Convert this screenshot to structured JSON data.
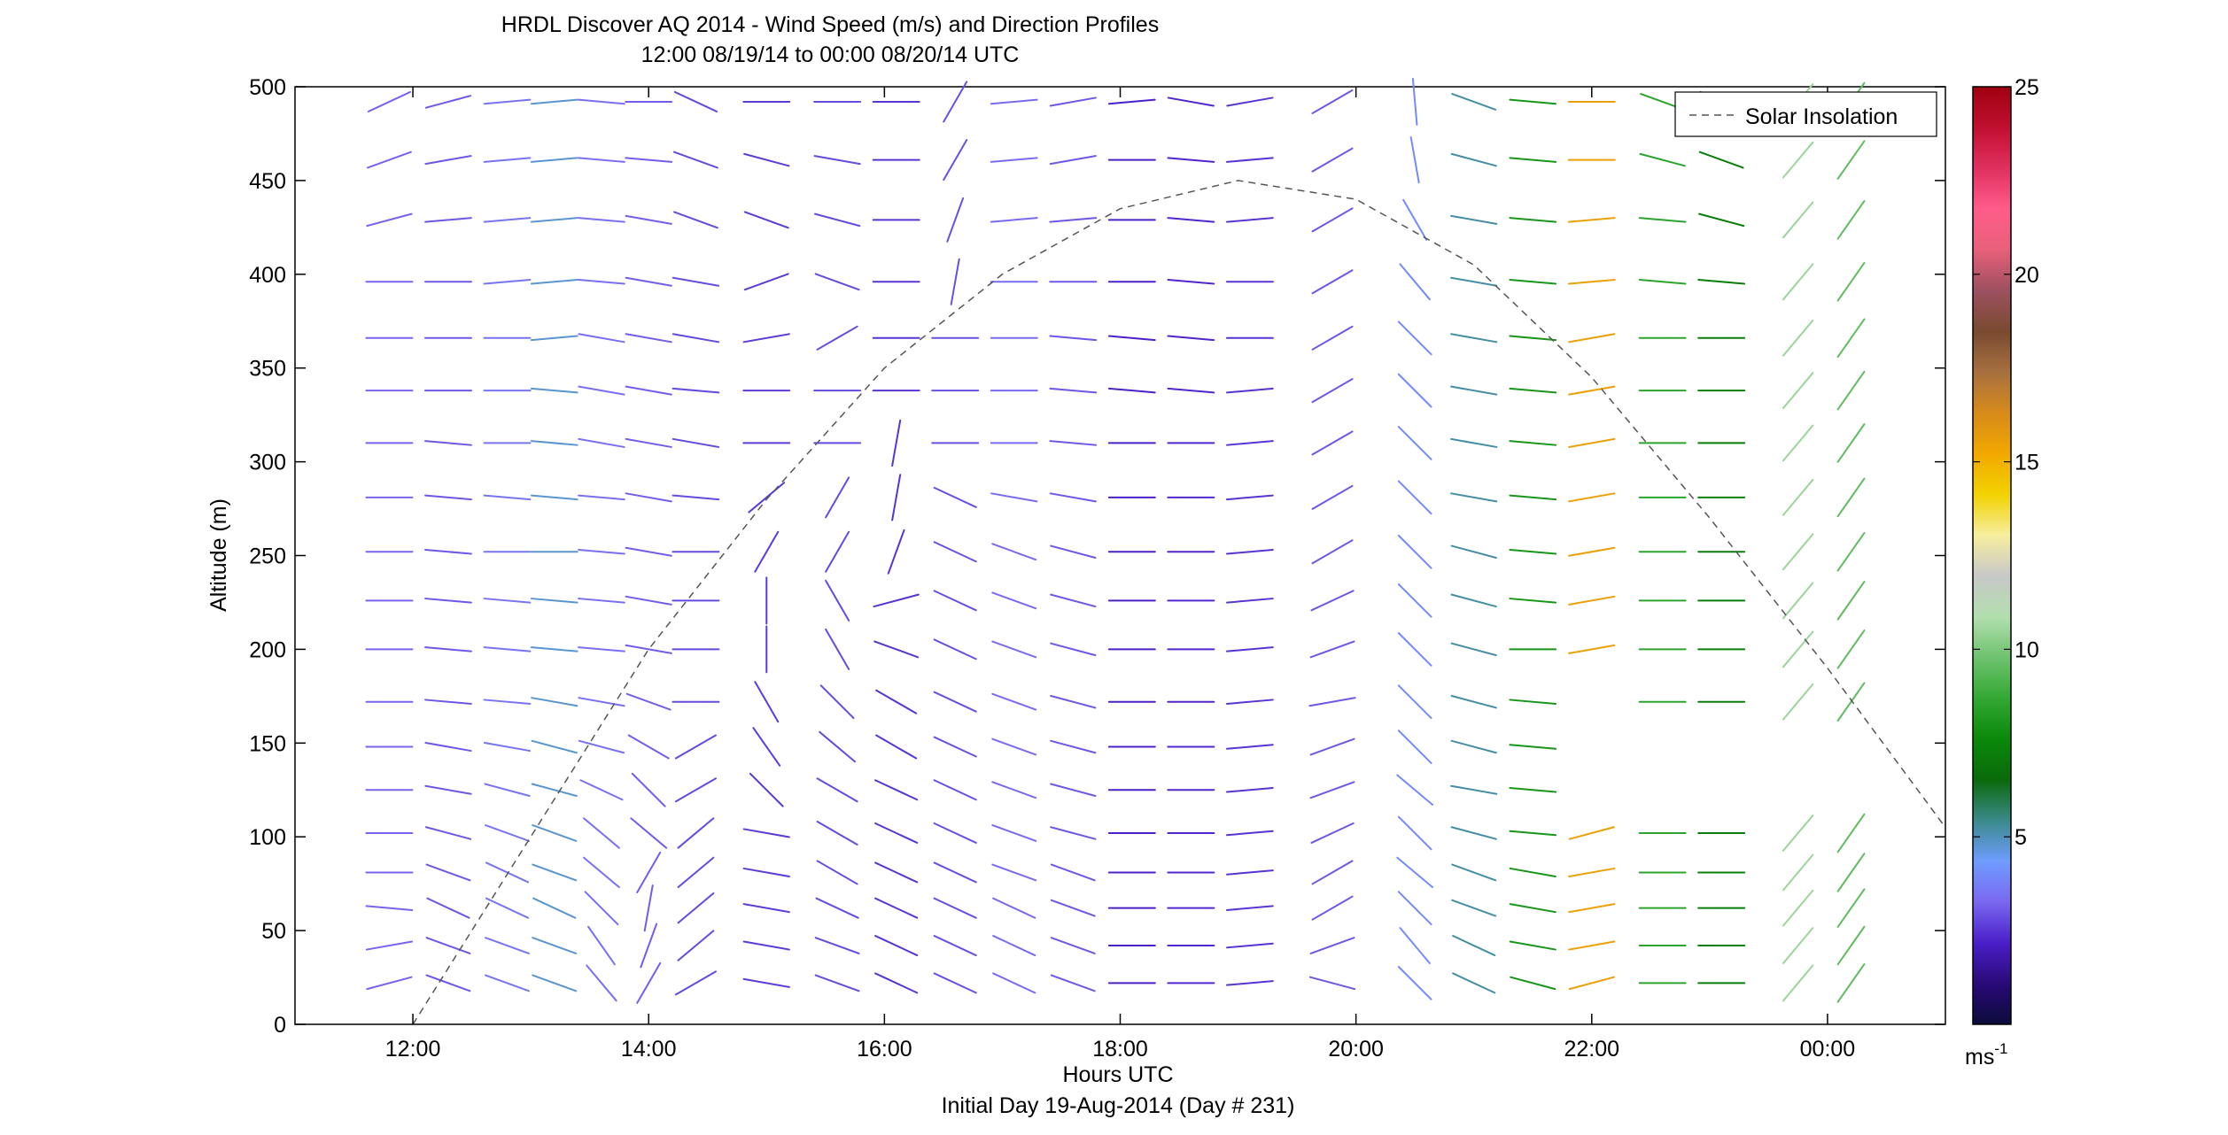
{
  "chart_data": {
    "type": "wind_barb_profile",
    "title": [
      "HRDL Discover AQ 2014 - Wind Speed (m/s) and Direction Profiles",
      "12:00 08/19/14 to 00:00 08/20/14  UTC"
    ],
    "xlabel": "Hours UTC",
    "xlabel2": "Initial Day 19-Aug-2014 (Day # 231)",
    "ylabel": "Altitude (m)",
    "x_ticks": [
      "12:00",
      "14:00",
      "16:00",
      "18:00",
      "20:00",
      "22:00",
      "00:00"
    ],
    "x_tick_hours": [
      12,
      14,
      16,
      18,
      20,
      22,
      24
    ],
    "xlim": [
      11.0,
      25.0
    ],
    "y_ticks": [
      0,
      50,
      100,
      150,
      200,
      250,
      300,
      350,
      400,
      450,
      500
    ],
    "ylim": [
      0,
      500
    ],
    "colorbar": {
      "ticks": [
        5,
        10,
        15,
        20,
        25
      ],
      "range": [
        0,
        25
      ],
      "unit_label": "ms",
      "unit_superscript": "-1",
      "stops": [
        "#0b0b3a",
        "#2a0a78",
        "#4a1ec8",
        "#7a68f0",
        "#6f9cff",
        "#3a8a8a",
        "#0a6a0a",
        "#0a8a0a",
        "#33a833",
        "#6fc26f",
        "#b2dfae",
        "#c8c8c8",
        "#f6ee9e",
        "#f2d200",
        "#f2a800",
        "#d68a1a",
        "#a87040",
        "#7a4a30",
        "#9c5060",
        "#e8607a",
        "#ff5c8a",
        "#e03060",
        "#c01030",
        "#a00010"
      ]
    },
    "legend": {
      "label": "Solar Insolation",
      "position": "top-right",
      "line_style": "dashed",
      "color": "#555555"
    },
    "solar_insolation_curve": {
      "hours": [
        12.0,
        13.0,
        14.0,
        15.0,
        16.0,
        17.0,
        18.0,
        19.0,
        20.0,
        21.0,
        22.0,
        23.0,
        24.0,
        25.0
      ],
      "altitude": [
        0,
        100,
        200,
        280,
        350,
        400,
        435,
        450,
        440,
        405,
        345,
        270,
        190,
        105
      ]
    },
    "barb_altitudes": [
      22,
      42,
      62,
      81,
      102,
      125,
      148,
      172,
      200,
      226,
      252,
      281,
      310,
      338,
      366,
      396,
      429,
      461,
      492
    ],
    "profiles": [
      {
        "hour": 11.8,
        "speed": 3.2,
        "dir": [
          15,
          10,
          -5,
          0,
          0,
          0,
          0,
          0,
          0,
          0,
          0,
          0,
          0,
          0,
          0,
          0,
          15,
          20,
          25
        ]
      },
      {
        "hour": 12.3,
        "speed": 3.0,
        "dir": [
          -20,
          -20,
          -25,
          -20,
          -15,
          -10,
          -10,
          -5,
          -5,
          -5,
          -5,
          -5,
          -5,
          0,
          0,
          0,
          5,
          10,
          15
        ]
      },
      {
        "hour": 12.8,
        "speed": 3.5,
        "dir": [
          -20,
          -20,
          -25,
          -25,
          -20,
          -15,
          -10,
          -5,
          -5,
          -5,
          0,
          -5,
          0,
          0,
          0,
          5,
          5,
          5,
          5
        ]
      },
      {
        "hour": 13.2,
        "speed": 4.8,
        "dir": [
          -20,
          -20,
          -25,
          -20,
          -20,
          -15,
          -15,
          -10,
          -5,
          -5,
          0,
          -5,
          -5,
          -5,
          5,
          5,
          5,
          5,
          5
        ]
      },
      {
        "hour": 13.6,
        "speed": 3.4,
        "dir": [
          -50,
          -55,
          -45,
          -40,
          -40,
          -25,
          -15,
          -10,
          -5,
          -5,
          -5,
          -5,
          -10,
          -10,
          -10,
          -5,
          -5,
          -5,
          -5
        ]
      },
      {
        "hour": 14.0,
        "speed": 3.1,
        "dir": [
          60,
          70,
          80,
          60,
          -40,
          -45,
          -30,
          -20,
          -10,
          -10,
          -10,
          -10,
          -10,
          -10,
          -10,
          -10,
          -10,
          -5,
          0
        ]
      },
      {
        "hour": 14.4,
        "speed": 2.8,
        "dir": [
          30,
          40,
          40,
          40,
          40,
          30,
          30,
          0,
          0,
          0,
          0,
          -5,
          -10,
          -5,
          -10,
          -10,
          -20,
          -20,
          -25
        ]
      },
      {
        "hour": 15.0,
        "speed": 2.6,
        "dir": [
          -10,
          -10,
          -10,
          -10,
          -10,
          -45,
          -55,
          -60,
          -90,
          90,
          60,
          40,
          0,
          0,
          10,
          20,
          -20,
          -15,
          0
        ]
      },
      {
        "hour": 15.6,
        "speed": 2.8,
        "dir": [
          -20,
          -20,
          -25,
          -30,
          -30,
          -30,
          -40,
          -45,
          -60,
          -60,
          60,
          60,
          0,
          0,
          30,
          -20,
          -15,
          -10,
          0
        ]
      },
      {
        "hour": 16.1,
        "speed": 2.5,
        "dir": [
          -25,
          -25,
          -25,
          -25,
          -25,
          -25,
          -30,
          -30,
          -20,
          15,
          70,
          80,
          80,
          0,
          0,
          0,
          0,
          0,
          0
        ]
      },
      {
        "hour": 16.6,
        "speed": 2.9,
        "dir": [
          -25,
          -25,
          -25,
          -25,
          -25,
          -25,
          -25,
          -25,
          -25,
          -25,
          -25,
          -25,
          0,
          0,
          0,
          80,
          70,
          60,
          60
        ]
      },
      {
        "hour": 17.1,
        "speed": 3.3,
        "dir": [
          -25,
          -25,
          -25,
          -20,
          -20,
          -20,
          -20,
          -20,
          -20,
          -20,
          -20,
          -10,
          0,
          0,
          0,
          0,
          5,
          5,
          5
        ]
      },
      {
        "hour": 17.6,
        "speed": 3.0,
        "dir": [
          -20,
          -20,
          -20,
          -20,
          -15,
          -15,
          -15,
          -15,
          -15,
          -15,
          -15,
          -10,
          -5,
          -5,
          -5,
          0,
          5,
          10,
          10
        ]
      },
      {
        "hour": 18.1,
        "speed": 2.2,
        "dir": [
          0,
          0,
          0,
          0,
          0,
          0,
          0,
          0,
          0,
          0,
          0,
          0,
          0,
          -5,
          -5,
          0,
          0,
          0,
          5
        ]
      },
      {
        "hour": 18.6,
        "speed": 2.3,
        "dir": [
          0,
          0,
          0,
          0,
          0,
          0,
          0,
          0,
          0,
          0,
          0,
          0,
          0,
          -5,
          -5,
          -5,
          -5,
          -5,
          -10
        ]
      },
      {
        "hour": 19.1,
        "speed": 2.5,
        "dir": [
          5,
          5,
          5,
          5,
          5,
          5,
          5,
          5,
          5,
          5,
          5,
          5,
          5,
          5,
          0,
          0,
          5,
          5,
          10
        ]
      },
      {
        "hour": 19.8,
        "speed": 3.0,
        "dir": [
          -15,
          20,
          30,
          30,
          25,
          20,
          20,
          10,
          20,
          25,
          30,
          30,
          30,
          30,
          30,
          30,
          30,
          30,
          30
        ]
      },
      {
        "hour": 20.5,
        "speed": 4.0,
        "dir": [
          -45,
          -50,
          -45,
          -40,
          -45,
          -40,
          -45,
          -45,
          -45,
          -45,
          -45,
          -45,
          -45,
          -45,
          -45,
          -50,
          -60,
          -80,
          -85
        ]
      },
      {
        "hour": 21.0,
        "speed": 5.2,
        "dir": [
          -25,
          -25,
          -20,
          -20,
          -15,
          -10,
          -15,
          -15,
          -15,
          -15,
          -15,
          -10,
          -10,
          -10,
          -10,
          -10,
          -10,
          -15,
          -20
        ]
      },
      {
        "hour": 21.5,
        "speed": 8.0,
        "dir": [
          -15,
          -10,
          -10,
          -10,
          -5,
          -5,
          -5,
          -5,
          0,
          -5,
          -5,
          -5,
          -5,
          -5,
          -5,
          -5,
          -5,
          -5,
          -5
        ]
      },
      {
        "hour": 22.0,
        "speed": 15.5,
        "dir": [
          15,
          10,
          10,
          10,
          15,
          999,
          999,
          999,
          10,
          10,
          10,
          10,
          10,
          10,
          10,
          5,
          5,
          0,
          0
        ]
      },
      {
        "hour": 22.6,
        "speed": 8.5,
        "dir": [
          0,
          0,
          0,
          0,
          0,
          999,
          999,
          0,
          0,
          0,
          0,
          0,
          0,
          0,
          0,
          -5,
          -5,
          -15,
          -20
        ]
      },
      {
        "hour": 23.1,
        "speed": 7.2,
        "dir": [
          0,
          0,
          0,
          0,
          0,
          999,
          999,
          0,
          0,
          0,
          0,
          0,
          0,
          0,
          0,
          -5,
          -15,
          -20,
          -25
        ]
      },
      {
        "hour": 23.75,
        "speed": 10.5,
        "dir": [
          50,
          50,
          50,
          50,
          50,
          999,
          999,
          50,
          50,
          50,
          50,
          50,
          50,
          50,
          50,
          50,
          50,
          50,
          50
        ]
      },
      {
        "hour": 24.2,
        "speed": 9.5,
        "dir": [
          55,
          55,
          55,
          55,
          55,
          999,
          999,
          55,
          55,
          55,
          55,
          55,
          55,
          55,
          55,
          55,
          55,
          55,
          55
        ]
      }
    ]
  }
}
